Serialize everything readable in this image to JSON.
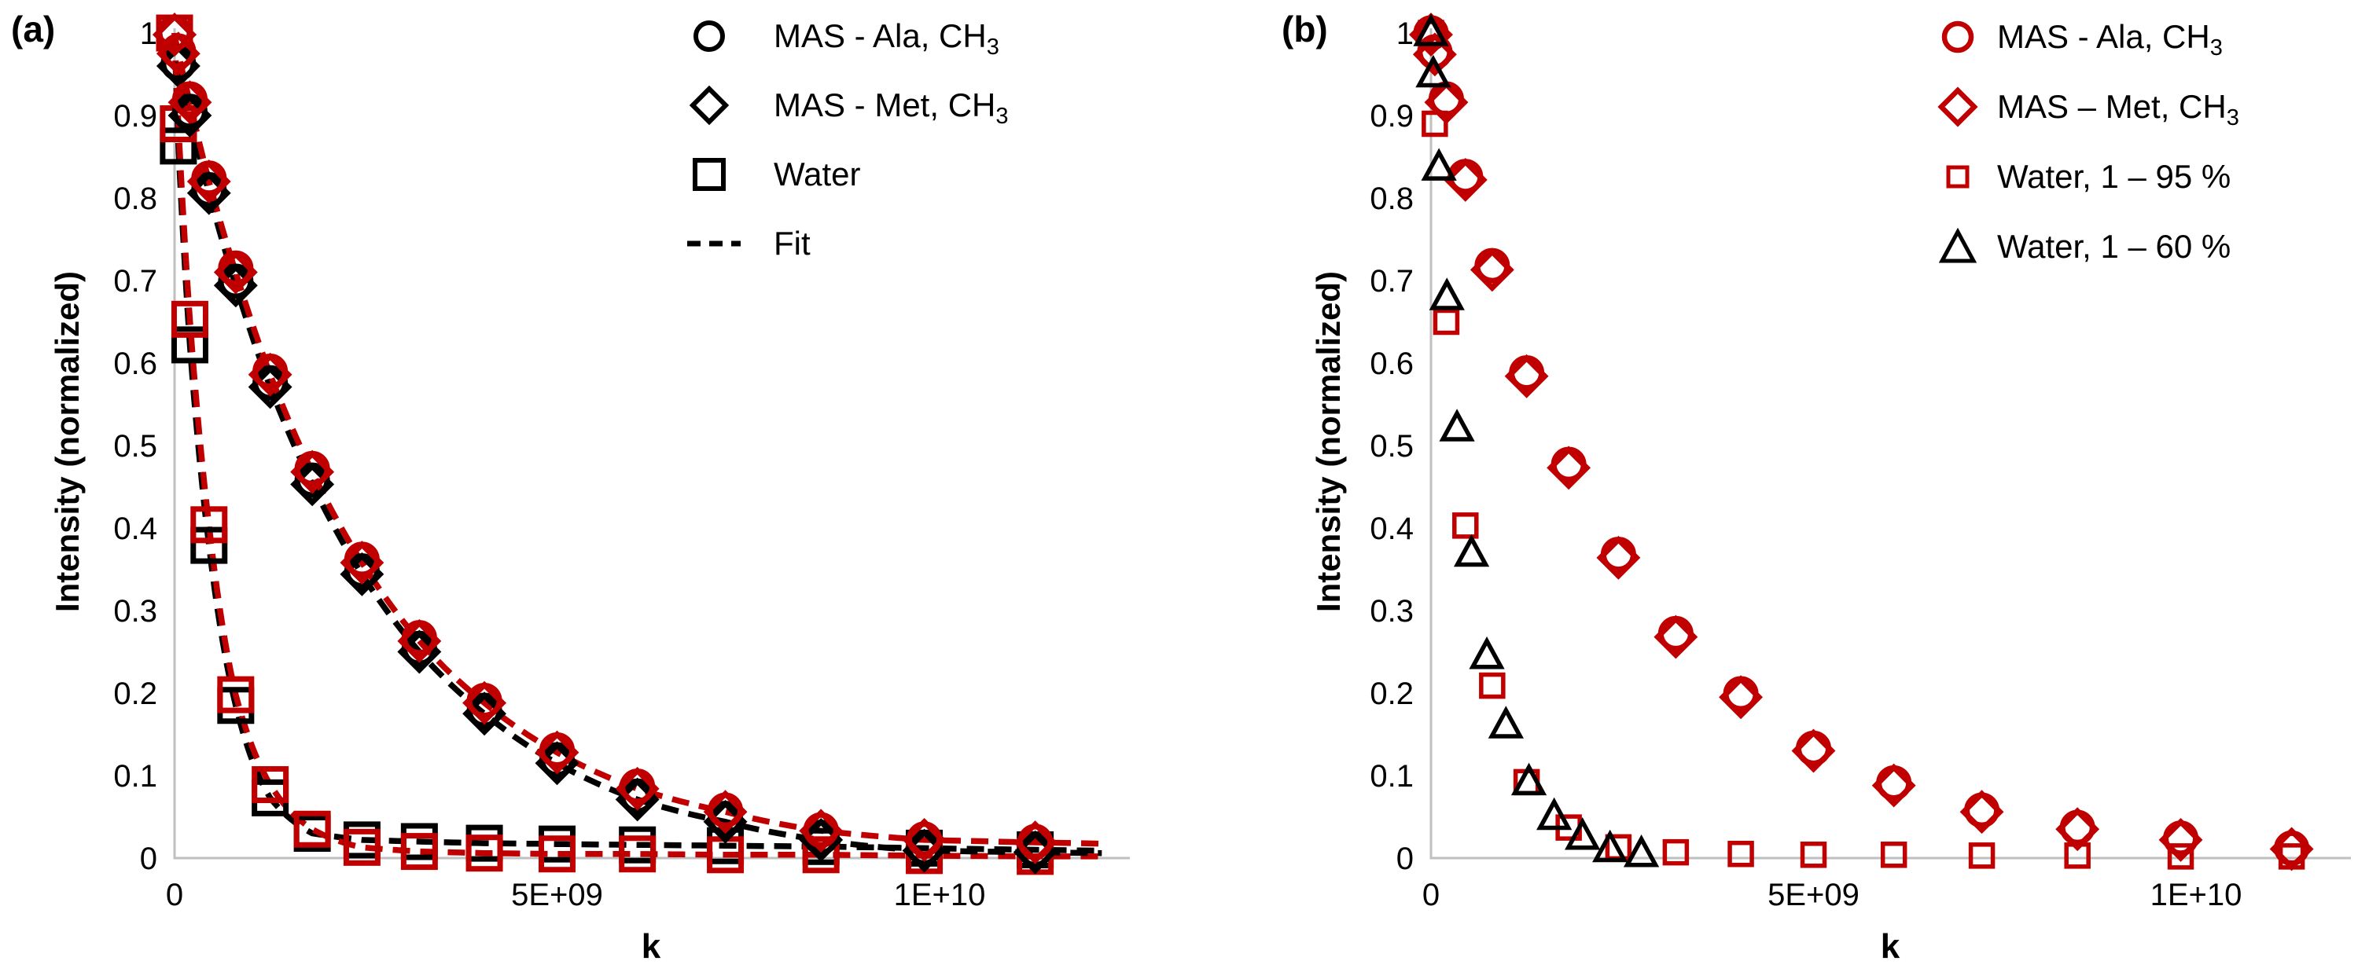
{
  "colors": {
    "red": "#C00000",
    "black": "#000000",
    "axis": "#BFBFBF",
    "text": "#000000"
  },
  "chart_data": [
    {
      "id": "a",
      "panel_label": "(a)",
      "type": "scatter",
      "x_axis": {
        "label": "k",
        "range": [
          0,
          12500000000.0
        ],
        "ticks": [
          {
            "value": 0,
            "label": "0"
          },
          {
            "value": 5000000000.0,
            "label": "5E+09"
          },
          {
            "value": 10000000000.0,
            "label": "1E+10"
          }
        ]
      },
      "y_axis": {
        "label": "Intensity (normalized)",
        "range": [
          0,
          1
        ],
        "ticks": [
          "0",
          "0.1",
          "0.2",
          "0.3",
          "0.4",
          "0.5",
          "0.6",
          "0.7",
          "0.8",
          "0.9",
          "1"
        ]
      },
      "legend": [
        {
          "marker": "circle",
          "color": "#000000",
          "text": "MAS - Ala, CH",
          "sub": "3"
        },
        {
          "marker": "diamond",
          "color": "#000000",
          "text": "MAS - Met, CH",
          "sub": "3"
        },
        {
          "marker": "square",
          "color": "#000000",
          "text": "Water",
          "sub": ""
        },
        {
          "marker": "dash",
          "color": "#000000",
          "text": "Fit",
          "sub": ""
        }
      ],
      "k_values": [
        0,
        50000000.0,
        200000000.0,
        450000000.0,
        800000000.0,
        1250000000.0,
        1800000000.0,
        2450000000.0,
        3200000000.0,
        4050000000.0,
        5000000000.0,
        6050000000.0,
        7200000000.0,
        8450000000.0,
        9800000000.0,
        11250000000.0
      ],
      "series": [
        {
          "name": "Water (black)",
          "marker": "square",
          "color": "#000000",
          "values": [
            1.0,
            0.863,
            0.622,
            0.379,
            0.185,
            0.073,
            0.03,
            0.022,
            0.02,
            0.018,
            0.017,
            0.016,
            0.015,
            0.014,
            0.012,
            0.01
          ]
        },
        {
          "name": "Water (red)",
          "marker": "square",
          "color": "#C00000",
          "values": [
            1.0,
            0.89,
            0.653,
            0.404,
            0.198,
            0.089,
            0.035,
            0.013,
            0.008,
            0.006,
            0.005,
            0.005,
            0.004,
            0.004,
            0.003,
            0.002
          ]
        },
        {
          "name": "MAS - Ala, CH3 (black)",
          "marker": "circle",
          "color": "#000000",
          "values": [
            1.0,
            0.963,
            0.905,
            0.81,
            0.699,
            0.576,
            0.458,
            0.348,
            0.254,
            0.179,
            0.119,
            0.075,
            0.048,
            0.025,
            0.012,
            0.01
          ]
        },
        {
          "name": "MAS - Met, CH3 (black)",
          "marker": "diamond",
          "color": "#000000",
          "values": [
            0.998,
            0.96,
            0.9,
            0.806,
            0.694,
            0.571,
            0.453,
            0.344,
            0.25,
            0.175,
            0.115,
            0.071,
            0.044,
            0.022,
            0.009,
            0.007
          ]
        },
        {
          "name": "MAS - Ala, CH3 (red)",
          "marker": "circle",
          "color": "#C00000",
          "values": [
            1.0,
            0.978,
            0.92,
            0.824,
            0.715,
            0.59,
            0.472,
            0.362,
            0.267,
            0.191,
            0.131,
            0.087,
            0.058,
            0.034,
            0.023,
            0.02
          ]
        },
        {
          "name": "MAS - Met, CH3 (red)",
          "marker": "diamond",
          "color": "#C00000",
          "values": [
            0.998,
            0.975,
            0.916,
            0.82,
            0.71,
            0.586,
            0.468,
            0.358,
            0.263,
            0.188,
            0.128,
            0.084,
            0.056,
            0.033,
            0.022,
            0.019
          ]
        }
      ],
      "fits": [
        {
          "series": 0
        },
        {
          "series": 1
        },
        {
          "series": 3
        },
        {
          "series": 5
        }
      ]
    },
    {
      "id": "b",
      "panel_label": "(b)",
      "type": "scatter",
      "x_axis": {
        "label": "k",
        "range": [
          0,
          12500000000.0
        ],
        "ticks": [
          {
            "value": 0,
            "label": "0"
          },
          {
            "value": 5000000000.0,
            "label": "5E+09"
          },
          {
            "value": 10000000000.0,
            "label": "1E+10"
          }
        ]
      },
      "y_axis": {
        "label": "Intensity (normalized)",
        "range": [
          0,
          1
        ],
        "ticks": [
          "0",
          "0.1",
          "0.2",
          "0.3",
          "0.4",
          "0.5",
          "0.6",
          "0.7",
          "0.8",
          "0.9",
          "1"
        ]
      },
      "legend": [
        {
          "marker": "circle",
          "color": "#C00000",
          "text": "MAS - Ala, CH",
          "sub": "3"
        },
        {
          "marker": "diamond",
          "color": "#C00000",
          "text": "MAS – Met, CH",
          "sub": "3"
        },
        {
          "marker": "square_small",
          "color": "#C00000",
          "text": "Water, 1 – 95 %",
          "sub": ""
        },
        {
          "marker": "triangle",
          "color": "#000000",
          "text": "Water, 1 – 60 %",
          "sub": ""
        }
      ],
      "k_values": [
        0,
        50000000.0,
        200000000.0,
        450000000.0,
        800000000.0,
        1250000000.0,
        1800000000.0,
        2450000000.0,
        3200000000.0,
        4050000000.0,
        5000000000.0,
        6050000000.0,
        7200000000.0,
        8450000000.0,
        9800000000.0,
        11250000000.0
      ],
      "series": [
        {
          "name": "Water, 1 - 95 % (red)",
          "marker": "square_small",
          "color": "#C00000",
          "values": [
            1.0,
            0.89,
            0.65,
            0.403,
            0.209,
            0.092,
            0.037,
            0.013,
            0.007,
            0.005,
            0.004,
            0.004,
            0.003,
            0.003,
            0.002,
            0.002
          ]
        },
        {
          "name": "MAS - Ala, CH3 (red)",
          "marker": "circle",
          "color": "#C00000",
          "values": [
            1.0,
            0.977,
            0.92,
            0.826,
            0.718,
            0.588,
            0.477,
            0.368,
            0.272,
            0.199,
            0.133,
            0.091,
            0.058,
            0.037,
            0.024,
            0.012
          ]
        },
        {
          "name": "MAS - Met, CH3 (red)",
          "marker": "diamond",
          "color": "#C00000",
          "values": [
            0.998,
            0.974,
            0.916,
            0.822,
            0.713,
            0.584,
            0.473,
            0.364,
            0.268,
            0.195,
            0.13,
            0.088,
            0.056,
            0.035,
            0.022,
            0.011
          ]
        },
        {
          "name": "Water, 1 - 60 % (black)",
          "marker": "triangle",
          "color": "#000000",
          "k": [
            0,
            30000000.0,
            104000000.0,
            208000000.0,
            340000000.0,
            530000000.0,
            730000000.0,
            980000000.0,
            1280000000.0,
            1610000000.0,
            1980000000.0,
            2340000000.0,
            2750000000.0
          ],
          "values": [
            1.0,
            0.95,
            0.837,
            0.68,
            0.521,
            0.369,
            0.245,
            0.161,
            0.092,
            0.05,
            0.026,
            0.011,
            0.005
          ]
        }
      ],
      "fits": []
    }
  ]
}
